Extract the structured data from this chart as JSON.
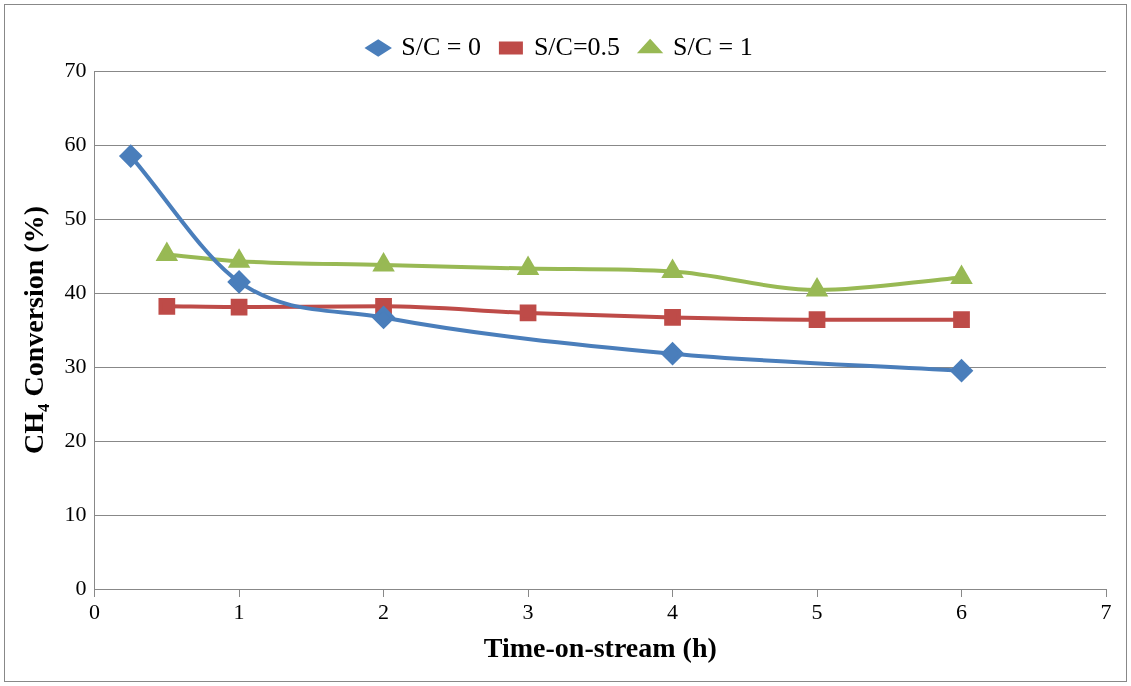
{
  "chart_data": {
    "type": "line",
    "xlabel": "Time-on-stream (h)",
    "ylabel": "CH₄ Conversion (%)",
    "xlim": [
      0,
      7
    ],
    "xticks": [
      0,
      1,
      2,
      3,
      4,
      5,
      6,
      7
    ],
    "ylim": [
      0,
      70
    ],
    "yticks": [
      0,
      10,
      20,
      30,
      40,
      50,
      60,
      70
    ],
    "grid": "y",
    "legend": "top",
    "line_style": "solid",
    "series": [
      {
        "name": "S/C = 0",
        "color": "#4a7ebb",
        "marker": "diamond",
        "x": [
          0.25,
          1,
          2,
          4,
          6
        ],
        "values": [
          58.5,
          41.5,
          36.7,
          31.8,
          29.5
        ]
      },
      {
        "name": "S/C=0.5",
        "color": "#be4b48",
        "marker": "square",
        "x": [
          0.5,
          1,
          2,
          3,
          4,
          5,
          6
        ],
        "values": [
          38.2,
          38.1,
          38.2,
          37.3,
          36.7,
          36.4,
          36.4
        ]
      },
      {
        "name": "S/C = 1",
        "color": "#98b954",
        "marker": "triangle",
        "x": [
          0.5,
          1,
          2,
          3,
          4,
          5,
          6
        ],
        "values": [
          45.2,
          44.3,
          43.8,
          43.3,
          42.9,
          40.4,
          42.1
        ]
      }
    ]
  }
}
